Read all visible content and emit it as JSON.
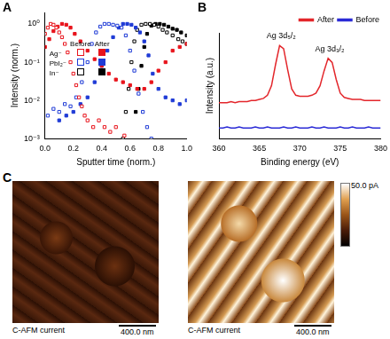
{
  "chart_data": [
    {
      "panel": "A",
      "type": "scatter",
      "x_label": "Sputter time (norm.)",
      "y_label": "Intensity (norm.)",
      "log": "y",
      "grid": false,
      "legend": "upper left",
      "xlim": [
        0,
        1
      ],
      "xticks": [
        {
          "value": 0,
          "label": "0.0"
        },
        {
          "value": 0.2,
          "label": "0.2"
        },
        {
          "value": 0.4,
          "label": "0.4"
        },
        {
          "value": 0.6,
          "label": "0.6"
        },
        {
          "value": 0.8,
          "label": "0.8"
        },
        {
          "value": 1,
          "label": "1.0"
        }
      ],
      "ylim": [
        0.001,
        2
      ],
      "yticks": [
        {
          "value": 0.001,
          "label": "10⁻³"
        },
        {
          "value": 0.01,
          "label": "10⁻²"
        },
        {
          "value": 0.1,
          "label": "10⁻¹"
        },
        {
          "value": 1,
          "label": "10⁰"
        }
      ],
      "series": [
        {
          "name": "Ag⁻",
          "state": "Before",
          "color": "#e8141c",
          "marker": "open_square",
          "x": [
            0,
            0.02,
            0.04,
            0.06,
            0.08,
            0.1,
            0.12,
            0.14,
            0.16,
            0.18,
            0.2,
            0.22,
            0.24,
            0.26,
            0.28,
            0.3,
            0.34,
            0.38,
            0.42,
            0.46,
            0.5,
            0.56
          ],
          "values": [
            0.55,
            0.8,
            1.0,
            0.95,
            0.8,
            0.6,
            0.45,
            0.3,
            0.18,
            0.1,
            0.05,
            0.025,
            0.012,
            0.007,
            0.004,
            0.003,
            0.002,
            0.003,
            0.002,
            0.0015,
            0.002,
            0.0012
          ]
        },
        {
          "name": "Ag⁻",
          "state": "After",
          "color": "#e8141c",
          "marker": "filled_square",
          "x": [
            0,
            0.03,
            0.06,
            0.09,
            0.12,
            0.15,
            0.18,
            0.21,
            0.25,
            0.3,
            0.35,
            0.4,
            0.45,
            0.5,
            0.55,
            0.6,
            0.65,
            0.7,
            0.75,
            0.8,
            0.85,
            0.9,
            0.95,
            1.0
          ],
          "values": [
            0.25,
            0.4,
            0.65,
            0.85,
            1.0,
            0.95,
            0.8,
            0.55,
            0.35,
            0.2,
            0.12,
            0.08,
            0.05,
            0.035,
            0.03,
            0.025,
            0.02,
            0.02,
            0.03,
            0.06,
            0.1,
            0.2,
            0.25,
            0.3
          ]
        },
        {
          "name": "PbI₂⁻",
          "state": "Before",
          "color": "#1f3bd6",
          "marker": "open_square",
          "x": [
            0.02,
            0.06,
            0.1,
            0.14,
            0.18,
            0.22,
            0.26,
            0.3,
            0.33,
            0.36,
            0.39,
            0.42,
            0.45,
            0.48,
            0.51,
            0.54,
            0.57,
            0.6,
            0.63,
            0.66,
            0.69,
            0.72,
            0.75
          ],
          "values": [
            0.004,
            0.006,
            0.005,
            0.008,
            0.007,
            0.012,
            0.03,
            0.1,
            0.3,
            0.6,
            0.85,
            1.0,
            1.0,
            0.95,
            0.9,
            0.8,
            0.5,
            0.2,
            0.06,
            0.015,
            0.005,
            0.002,
            0.001
          ]
        },
        {
          "name": "PbI₂⁻",
          "state": "After",
          "color": "#1f3bd6",
          "marker": "filled_square",
          "x": [
            0.1,
            0.15,
            0.2,
            0.25,
            0.3,
            0.35,
            0.4,
            0.44,
            0.48,
            0.52,
            0.55,
            0.58,
            0.61,
            0.64,
            0.67,
            0.7,
            0.73,
            0.76,
            0.8,
            0.85,
            0.9,
            0.95,
            1.0
          ],
          "values": [
            0.003,
            0.004,
            0.005,
            0.008,
            0.012,
            0.03,
            0.08,
            0.2,
            0.45,
            0.8,
            1.0,
            1.0,
            0.95,
            0.8,
            0.6,
            0.35,
            0.15,
            0.05,
            0.02,
            0.012,
            0.01,
            0.008,
            0.01
          ]
        },
        {
          "name": "In⁻",
          "state": "Before",
          "color": "#000000",
          "marker": "open_square",
          "x": [
            0.55,
            0.57,
            0.59,
            0.61,
            0.63,
            0.65,
            0.68,
            0.71,
            0.74,
            0.77,
            0.8,
            0.83,
            0.86,
            0.9,
            0.94,
            0.97,
            1.0
          ],
          "values": [
            0.001,
            0.005,
            0.02,
            0.1,
            0.35,
            0.7,
            0.95,
            1.0,
            1.0,
            0.95,
            0.85,
            0.7,
            0.6,
            0.5,
            0.4,
            0.35,
            0.3
          ]
        },
        {
          "name": "In⁻",
          "state": "After",
          "color": "#000000",
          "marker": "filled_square",
          "x": [
            0.64,
            0.66,
            0.68,
            0.7,
            0.72,
            0.75,
            0.78,
            0.81,
            0.84,
            0.87,
            0.9,
            0.93,
            0.96,
            1.0
          ],
          "values": [
            0.005,
            0.02,
            0.08,
            0.25,
            0.55,
            0.9,
            1.0,
            1.0,
            0.95,
            0.85,
            0.75,
            0.7,
            0.6,
            0.5
          ]
        }
      ]
    },
    {
      "panel": "B",
      "type": "line",
      "x_label": "Binding energy (eV)",
      "y_label": "Intensity (a.u.)",
      "grid": false,
      "legend": "upper right",
      "tick_labels": "x",
      "xlim": [
        360,
        380
      ],
      "xticks": [
        360,
        365,
        370,
        375,
        380
      ],
      "ylim": [
        0,
        1
      ],
      "annotations": [
        {
          "text": "Ag 3d₅/₂",
          "x": 367.7,
          "y": 0.93
        },
        {
          "text": "Ag 3d₃/₂",
          "x": 373.7,
          "y": 0.81
        }
      ],
      "series": [
        {
          "name": "After",
          "color": "#e3262b",
          "x": [
            360,
            360.5,
            361,
            361.5,
            362,
            362.5,
            363,
            363.5,
            364,
            364.5,
            365,
            365.5,
            366,
            366.5,
            367,
            367.5,
            368,
            368.5,
            369,
            369.5,
            370,
            370.5,
            371,
            371.5,
            372,
            372.5,
            373,
            373.5,
            374,
            374.5,
            375,
            375.5,
            376,
            376.5,
            377,
            377.5,
            378,
            378.5,
            379,
            379.5,
            380
          ],
          "values": [
            0.34,
            0.34,
            0.34,
            0.35,
            0.34,
            0.35,
            0.35,
            0.35,
            0.36,
            0.36,
            0.37,
            0.38,
            0.41,
            0.5,
            0.7,
            0.88,
            0.85,
            0.65,
            0.47,
            0.41,
            0.4,
            0.4,
            0.4,
            0.41,
            0.43,
            0.5,
            0.64,
            0.76,
            0.72,
            0.56,
            0.43,
            0.39,
            0.38,
            0.37,
            0.37,
            0.37,
            0.36,
            0.36,
            0.36,
            0.36,
            0.36
          ]
        },
        {
          "name": "Before",
          "color": "#2b2bd6",
          "x": [
            360,
            360.5,
            361,
            361.5,
            362,
            362.5,
            363,
            363.5,
            364,
            364.5,
            365,
            365.5,
            366,
            366.5,
            367,
            367.5,
            368,
            368.5,
            369,
            369.5,
            370,
            370.5,
            371,
            371.5,
            372,
            372.5,
            373,
            373.5,
            374,
            374.5,
            375,
            375.5,
            376,
            376.5,
            377,
            377.5,
            378,
            378.5,
            379,
            379.5,
            380
          ],
          "values": [
            0.1,
            0.1,
            0.11,
            0.1,
            0.1,
            0.11,
            0.1,
            0.1,
            0.1,
            0.11,
            0.1,
            0.1,
            0.11,
            0.1,
            0.1,
            0.1,
            0.11,
            0.1,
            0.1,
            0.11,
            0.1,
            0.1,
            0.1,
            0.11,
            0.1,
            0.1,
            0.11,
            0.1,
            0.1,
            0.1,
            0.11,
            0.1,
            0.1,
            0.11,
            0.1,
            0.1,
            0.1,
            0.11,
            0.1,
            0.1,
            0.1
          ]
        }
      ]
    }
  ],
  "images": {
    "panel": "C",
    "colorbar_label": "50.0 pA",
    "items": [
      {
        "caption": "C-AFM current",
        "scale_bar": "400.0 nm"
      },
      {
        "caption": "C-AFM current",
        "scale_bar": "400.0 nm"
      }
    ]
  }
}
